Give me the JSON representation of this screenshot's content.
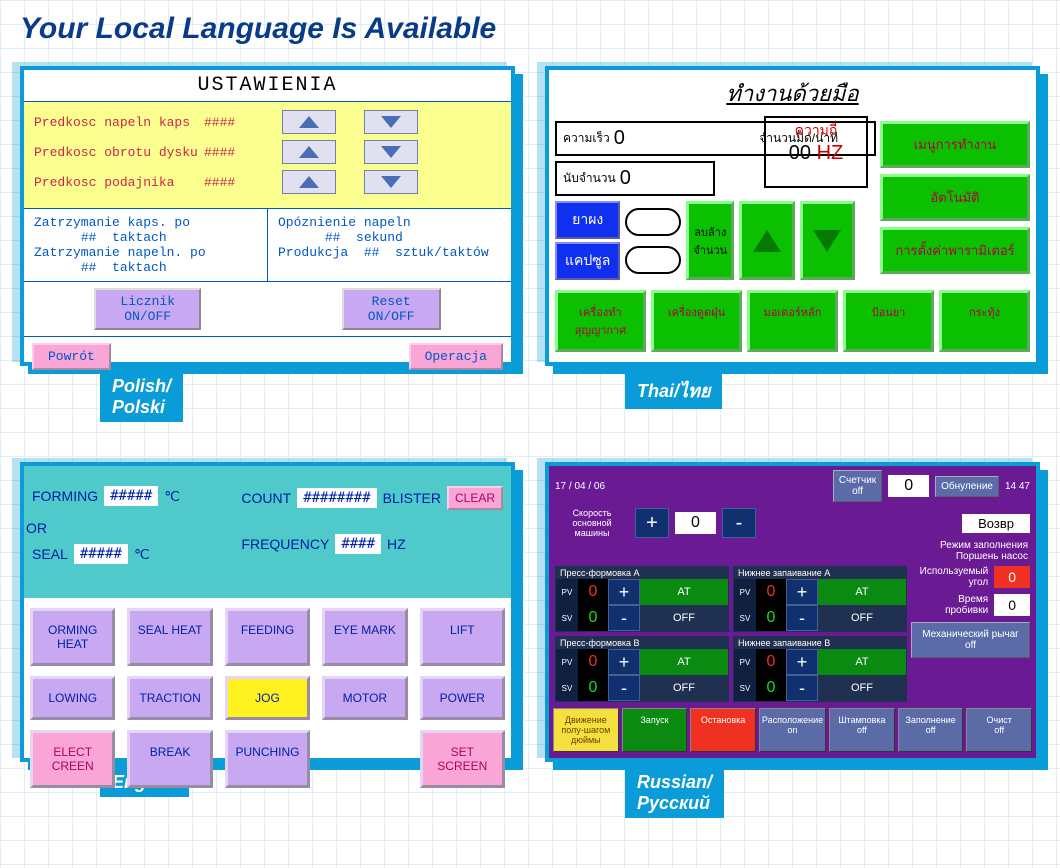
{
  "title": "Your Local Language Is Available",
  "labels": {
    "polish": "Polish/\nPolski",
    "thai": "Thai/ไทย",
    "english": "English",
    "russian": "Russian/\nРусский"
  },
  "polish": {
    "header": "USTAWIENIA",
    "rows": [
      {
        "label": "Predkosc napeln kaps",
        "value": "####"
      },
      {
        "label": "Predkosc obrotu dysku",
        "value": "####"
      },
      {
        "label": "Predkosc podajnika",
        "value": "####"
      }
    ],
    "col1": {
      "l1": "Zatrzymanie kaps. po",
      "v1": "##",
      "u1": "taktach",
      "l2": "Zatrzymanie napeln. po",
      "v2": "##",
      "u2": "taktach"
    },
    "col2": {
      "l1": "Opóznienie napeln",
      "v1": "##",
      "u1": "sekund",
      "l2": "Produkcja",
      "v2": "##",
      "u2": "sztuk/taktów"
    },
    "btn1": "Licznik\nON/OFF",
    "btn2": "Reset\nON/OFF",
    "back": "Powrót",
    "op": "Operacja"
  },
  "thai": {
    "title": "ทำงานด้วยมือ",
    "speed_lbl": "ความเร็ว",
    "speed_val": "0",
    "count_min_lbl": "จำนวนมีด/นาที",
    "count_lbl": "นับจำนวน",
    "count_val": "0",
    "freq_lbl": "ความถี่",
    "freq_val": "00",
    "hz": "HZ",
    "menu": "เมนูการทำงาน",
    "auto": "อัตโนมัติ",
    "param": "การตั้งค่าพารามิเตอร์",
    "powder": "ยาผง",
    "capsule": "แคปซูล",
    "clear": "ลบล้าง\nจำนวน",
    "bot": [
      "เครื่องทำสุญญากาศ",
      "เครื่องดูดฝุ่น",
      "มอเตอร์หลัก",
      "ป้อนยา",
      "กระทุ้ง"
    ]
  },
  "english": {
    "forming": "FORMING",
    "forming_val": "#####",
    "c": "℃",
    "or": "OR",
    "seal": "SEAL",
    "seal_val": "#####",
    "count": "COUNT",
    "count_val": "########",
    "blister": "BLISTER",
    "clear": "CLEAR",
    "freq": "FREQUENCY",
    "freq_val": "####",
    "hz": "HZ",
    "btns": [
      "ORMING HEAT",
      "SEAL HEAT",
      "FEEDING",
      "EYE MARK",
      "LIFT",
      "LOWING",
      "TRACTION",
      "JOG",
      "MOTOR",
      "POWER",
      "ELECT CREEN",
      "BREAK",
      "PUNCHING",
      "",
      "SET SCREEN"
    ]
  },
  "russian": {
    "date": "17 / 04 / 06",
    "counter": "Счетчик\noff",
    "counter_val": "0",
    "reset": "Обнуление",
    "time": "14 47",
    "back": "Возвр",
    "speed_lbl": "Скорость\nосновной\nмашины",
    "speed_val": "0",
    "mode": "Режим заполнения",
    "piston": "Поршень насос",
    "blocks": [
      {
        "t": "Пресс-формовка А",
        "pv": "0",
        "sv": "0"
      },
      {
        "t": "Нижнее запаивание А",
        "pv": "0",
        "sv": "0"
      },
      {
        "t": "Пресс-формовка В",
        "pv": "0",
        "sv": "0"
      },
      {
        "t": "Нижнее запаивание В",
        "pv": "0",
        "sv": "0"
      }
    ],
    "at": "AT",
    "off": "OFF",
    "angle_lbl": "Используемый\nугол",
    "angle_val": "0",
    "pierce_lbl": "Время\nпробивки",
    "pierce_val": "0",
    "mech": "Механический рычаг\noff",
    "foot": [
      {
        "t": "Движение\nполу-шагом\nдюймы",
        "c": "ylw"
      },
      {
        "t": "Запуск",
        "c": "gr2"
      },
      {
        "t": "Остановка",
        "c": "rd2"
      },
      {
        "t": "Расположение\non",
        "c": "bl2"
      },
      {
        "t": "Штамповка\noff",
        "c": "bl2"
      },
      {
        "t": "Заполнение\noff",
        "c": "bl2"
      },
      {
        "t": "Очист\noff",
        "c": "bl2"
      }
    ]
  }
}
